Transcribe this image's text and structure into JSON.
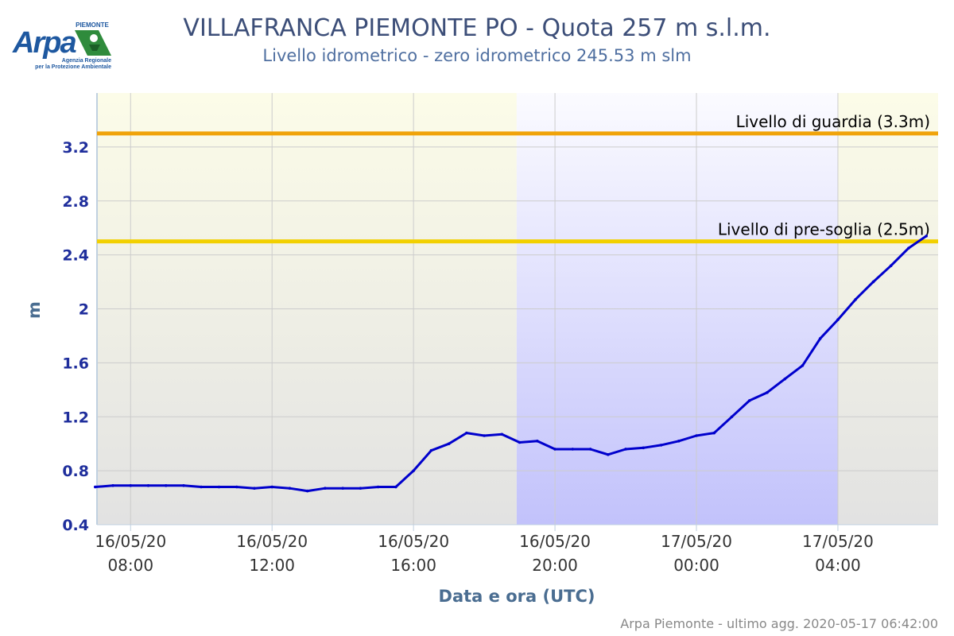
{
  "logo": {
    "text": "Arpa",
    "region": "PIEMONTE",
    "tagline_1": "Agenzia Regionale",
    "tagline_2": "per la Protezione Ambientale"
  },
  "footer": {
    "credits": "Arpa Piemonte - ultimo agg. 2020-05-17 06:42:00"
  },
  "colors": {
    "series": "#0000cc",
    "guard_line": "#f0a30a",
    "pre_threshold_line": "#f2d000",
    "day_band": "#fbfbe6",
    "night_band": "#c4c4ff",
    "grid": "#cccccc",
    "axis_title": "#4a6d91",
    "ytick": "#1f2e9c"
  },
  "chart_data": {
    "type": "line",
    "title": "VILLAFRANCA PIEMONTE PO - Quota 257 m s.l.m.",
    "subtitle": "Livello idrometrico - zero idrometrico 245.53 m slm",
    "xlabel": "Data e ora (UTC)",
    "ylabel": "m",
    "xlim": [
      "2020-05-16 07:03",
      "2020-05-17 06:50"
    ],
    "ylim": [
      0.4,
      3.6
    ],
    "yticks": [
      "0.4",
      "0.8",
      "1.2",
      "1.6",
      "2",
      "2.4",
      "2.8",
      "3.2"
    ],
    "ytick_values": [
      0.4,
      0.8,
      1.2,
      1.6,
      2.0,
      2.4,
      2.8,
      3.2
    ],
    "xticks": [
      {
        "time": "2020-05-16 08:00",
        "date": "16/05/20",
        "hour": "08:00"
      },
      {
        "time": "2020-05-16 12:00",
        "date": "16/05/20",
        "hour": "12:00"
      },
      {
        "time": "2020-05-16 16:00",
        "date": "16/05/20",
        "hour": "16:00"
      },
      {
        "time": "2020-05-16 20:00",
        "date": "16/05/20",
        "hour": "20:00"
      },
      {
        "time": "2020-05-17 00:00",
        "date": "17/05/20",
        "hour": "00:00"
      },
      {
        "time": "2020-05-17 04:00",
        "date": "17/05/20",
        "hour": "04:00"
      }
    ],
    "grid": true,
    "bands": [
      {
        "from": "2020-05-16 07:03",
        "to": "2020-05-16 18:55",
        "kind": "day"
      },
      {
        "from": "2020-05-16 18:55",
        "to": "2020-05-17 04:00",
        "kind": "night"
      },
      {
        "from": "2020-05-17 04:00",
        "to": "2020-05-17 06:50",
        "kind": "day"
      }
    ],
    "thresholds": [
      {
        "label": "Livello di guardia (3.3m)",
        "value": 3.3,
        "kind": "guard"
      },
      {
        "label": "Livello di pre-soglia (2.5m)",
        "value": 2.5,
        "kind": "pre"
      }
    ],
    "series": [
      {
        "x": [
          "2020-05-16 07:00",
          "2020-05-16 07:30",
          "2020-05-16 08:00",
          "2020-05-16 08:30",
          "2020-05-16 09:00",
          "2020-05-16 09:30",
          "2020-05-16 10:00",
          "2020-05-16 10:30",
          "2020-05-16 11:00",
          "2020-05-16 11:30",
          "2020-05-16 12:00",
          "2020-05-16 12:30",
          "2020-05-16 13:00",
          "2020-05-16 13:30",
          "2020-05-16 14:00",
          "2020-05-16 14:30",
          "2020-05-16 15:00",
          "2020-05-16 15:30",
          "2020-05-16 16:00",
          "2020-05-16 16:30",
          "2020-05-16 17:00",
          "2020-05-16 17:30",
          "2020-05-16 18:00",
          "2020-05-16 18:30",
          "2020-05-16 19:00",
          "2020-05-16 19:30",
          "2020-05-16 20:00",
          "2020-05-16 20:30",
          "2020-05-16 21:00",
          "2020-05-16 21:30",
          "2020-05-16 22:00",
          "2020-05-16 22:30",
          "2020-05-16 23:00",
          "2020-05-16 23:30",
          "2020-05-17 00:00",
          "2020-05-17 00:30",
          "2020-05-17 01:00",
          "2020-05-17 01:30",
          "2020-05-17 02:00",
          "2020-05-17 02:30",
          "2020-05-17 03:00",
          "2020-05-17 03:30",
          "2020-05-17 04:00",
          "2020-05-17 04:30",
          "2020-05-17 05:00",
          "2020-05-17 05:30",
          "2020-05-17 06:00",
          "2020-05-17 06:30"
        ],
        "y": [
          0.68,
          0.69,
          0.69,
          0.69,
          0.69,
          0.69,
          0.68,
          0.68,
          0.68,
          0.67,
          0.68,
          0.67,
          0.65,
          0.67,
          0.67,
          0.67,
          0.68,
          0.68,
          0.8,
          0.95,
          1.0,
          1.08,
          1.06,
          1.07,
          1.01,
          1.02,
          0.96,
          0.96,
          0.96,
          0.92,
          0.96,
          0.97,
          0.99,
          1.02,
          1.06,
          1.08,
          1.2,
          1.32,
          1.38,
          1.48,
          1.58,
          1.78,
          1.92,
          2.07,
          2.2,
          2.32,
          2.45,
          2.54
        ]
      }
    ]
  }
}
